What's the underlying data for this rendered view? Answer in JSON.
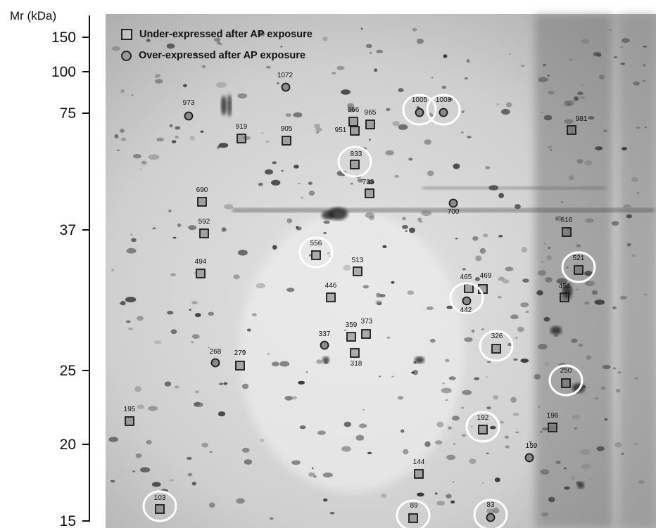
{
  "axis": {
    "title": "Mr (kDa)",
    "ticks": [
      "150",
      "100",
      "75",
      "37",
      "25",
      "20",
      "15"
    ]
  },
  "legend": {
    "square_label": "Under-expressed after AP exposure",
    "circle_label": "Over-expressed after AP exposure"
  },
  "spots": [
    {
      "id": "973",
      "type": "circle",
      "highlight": false
    },
    {
      "id": "1072",
      "type": "circle",
      "highlight": false
    },
    {
      "id": "919",
      "type": "square",
      "highlight": false
    },
    {
      "id": "905",
      "type": "square",
      "highlight": false
    },
    {
      "id": "966",
      "type": "square",
      "highlight": false
    },
    {
      "id": "965",
      "type": "square",
      "highlight": false
    },
    {
      "id": "951",
      "type": "square",
      "highlight": false
    },
    {
      "id": "1005",
      "type": "circle",
      "highlight": true
    },
    {
      "id": "1008",
      "type": "circle",
      "highlight": true
    },
    {
      "id": "981",
      "type": "square",
      "highlight": false
    },
    {
      "id": "833",
      "type": "square",
      "highlight": true
    },
    {
      "id": "733",
      "type": "square",
      "highlight": false
    },
    {
      "id": "690",
      "type": "square",
      "highlight": false
    },
    {
      "id": "700",
      "type": "circle",
      "highlight": false
    },
    {
      "id": "592",
      "type": "square",
      "highlight": false
    },
    {
      "id": "616",
      "type": "square",
      "highlight": false
    },
    {
      "id": "556",
      "type": "square",
      "highlight": true
    },
    {
      "id": "521",
      "type": "square",
      "highlight": true
    },
    {
      "id": "494",
      "type": "square",
      "highlight": false
    },
    {
      "id": "513",
      "type": "square",
      "highlight": false
    },
    {
      "id": "465",
      "type": "square",
      "highlight": false
    },
    {
      "id": "469",
      "type": "square",
      "highlight": false
    },
    {
      "id": "446",
      "type": "square",
      "highlight": false
    },
    {
      "id": "454",
      "type": "square",
      "highlight": false
    },
    {
      "id": "442",
      "type": "circle",
      "highlight": true
    },
    {
      "id": "359",
      "type": "square",
      "highlight": false
    },
    {
      "id": "373",
      "type": "square",
      "highlight": false
    },
    {
      "id": "337",
      "type": "circle",
      "highlight": false
    },
    {
      "id": "326",
      "type": "square",
      "highlight": true
    },
    {
      "id": "268",
      "type": "circle",
      "highlight": false
    },
    {
      "id": "279",
      "type": "square",
      "highlight": false
    },
    {
      "id": "318",
      "type": "square",
      "highlight": false
    },
    {
      "id": "250",
      "type": "square",
      "highlight": true
    },
    {
      "id": "195",
      "type": "square",
      "highlight": false
    },
    {
      "id": "192",
      "type": "square",
      "highlight": true
    },
    {
      "id": "196",
      "type": "square",
      "highlight": false
    },
    {
      "id": "159",
      "type": "circle",
      "highlight": false
    },
    {
      "id": "144",
      "type": "square",
      "highlight": false
    },
    {
      "id": "103",
      "type": "square",
      "highlight": true
    },
    {
      "id": "89",
      "type": "square",
      "highlight": true
    },
    {
      "id": "83",
      "type": "circle",
      "highlight": true
    }
  ]
}
